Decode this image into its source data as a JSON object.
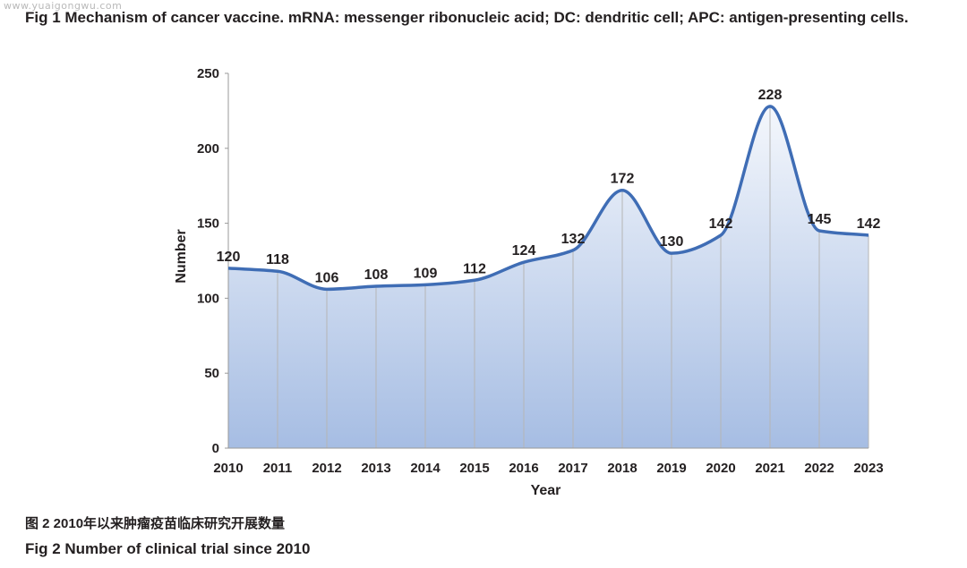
{
  "watermark": "www.yuaigongwu.com",
  "fig1_caption": "Fig 1  Mechanism of cancer vaccine. mRNA: messenger ribonucleic acid; DC: dendritic cell; APC: antigen-presenting cells.",
  "fig2_caption_cn": "图 2  2010年以来肿瘤疫苗临床研究开展数量",
  "fig2_caption_en": "Fig 2  Number of clinical trial since 2010",
  "colors": {
    "line": "#3f6db5",
    "fill_top": "#f4f7fc",
    "fill_bottom": "#a6bde3",
    "grid": "#b5b5b5"
  },
  "chart_data": {
    "type": "area",
    "x": [
      "2010",
      "2011",
      "2012",
      "2013",
      "2014",
      "2015",
      "2016",
      "2017",
      "2018",
      "2019",
      "2020",
      "2021",
      "2022",
      "2023"
    ],
    "series": [
      {
        "values": [
          120,
          118,
          106,
          108,
          109,
          112,
          124,
          132,
          172,
          130,
          142,
          228,
          145,
          142
        ]
      }
    ],
    "data_labels": [
      "120",
      "118",
      "106",
      "108",
      "109",
      "112",
      "124",
      "132",
      "172",
      "130",
      "142",
      "228",
      "145",
      "142"
    ],
    "xlabel": "Year",
    "ylabel": "Number",
    "ylim": [
      0,
      250
    ],
    "yticks": [
      "0",
      "50",
      "100",
      "150",
      "200",
      "250"
    ],
    "smooth": true,
    "vertical_gridlines": true
  }
}
